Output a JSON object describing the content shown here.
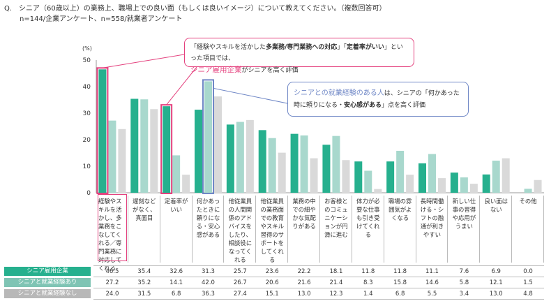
{
  "question": "Q.　シニア（60歳以上）の業務上、職場上での良い面（もしくは良いイメージ）について教えてください。（複数回答可）",
  "sample": "n=144/企業アンケート、n=558/就業者アンケート",
  "annotation1": {
    "line1_a": "「経験やスキルを活かした",
    "line1_b": "多業務/専門業務への対応",
    "line1_c": "」「",
    "line1_d": "定着率がいい",
    "line1_e": "」といった項目では、",
    "line2_a": "シニア雇用企業",
    "line2_b": "がシニアを高く評価"
  },
  "annotation2": {
    "line1_a": "シニアとの就業経験のある人",
    "line1_b": "は、シニアの「何かあった",
    "line2_a": "時に頼りになる・",
    "line2_b": "安心感がある",
    "line2_c": "」点を高く評価"
  },
  "chart_data": {
    "type": "bar",
    "ylabel": "(%)",
    "ylim": [
      0,
      50
    ],
    "yticks": [
      "0",
      "10",
      "20",
      "30",
      "40",
      "50"
    ],
    "colors": [
      "#26b08e",
      "#a8d8cd",
      "#d9d9d9"
    ],
    "categories": [
      "経験やスキルを活かし、多業務をこなしてくれる／専門業務に対応してくれる",
      "遅刻などがなく、真面目",
      "定着率がいい",
      "何かあったときに頼りになる・安心感がある",
      "他従業員の人間関係のアドバイスをしたり、相談役になってくれる",
      "他従業員の業務面での教育やスキル習得のサポートをしてくれる",
      "業務の中での細やかな気配りがある",
      "お客様とのコミュニケーションが円滑に進む",
      "体力が必要な仕事も引き受けてくれる",
      "職場の雰囲気がよくなる",
      "長時間働ける・シフトの融通が利きやすい",
      "新しい仕事の習得や応用がうまい",
      "良い面はない",
      "その他"
    ],
    "series": [
      {
        "name": "シニア雇用企業",
        "values": [
          46.5,
          35.4,
          32.6,
          31.3,
          25.7,
          23.6,
          22.2,
          18.1,
          11.8,
          11.8,
          11.1,
          7.6,
          6.9,
          0.0
        ],
        "labels": [
          "46.5",
          "35.4",
          "32.6",
          "31.3",
          "25.7",
          "23.6",
          "22.2",
          "18.1",
          "11.8",
          "11.8",
          "11.1",
          "7.6",
          "6.9",
          "0.0"
        ]
      },
      {
        "name": "シニアと就業経験あり",
        "values": [
          27.2,
          35.2,
          14.1,
          42.0,
          26.7,
          20.6,
          21.6,
          21.4,
          8.3,
          15.8,
          14.6,
          5.8,
          12.1,
          1.5
        ],
        "labels": [
          "27.2",
          "35.2",
          "14.1",
          "42.0",
          "26.7",
          "20.6",
          "21.6",
          "21.4",
          "8.3",
          "15.8",
          "14.6",
          "5.8",
          "12.1",
          "1.5"
        ]
      },
      {
        "name": "シニアと就業経験なし",
        "values": [
          24.0,
          31.5,
          6.8,
          36.3,
          27.4,
          15.1,
          13.0,
          12.3,
          1.4,
          6.8,
          5.5,
          3.4,
          13.0,
          4.8
        ],
        "labels": [
          "24.0",
          "31.5",
          "6.8",
          "36.3",
          "27.4",
          "15.1",
          "13.0",
          "12.3",
          "1.4",
          "6.8",
          "5.5",
          "3.4",
          "13.0",
          "4.8"
        ]
      }
    ],
    "highlight": [
      {
        "category_index": 0,
        "series_index": 0,
        "color": "#e4417e"
      },
      {
        "category_index": 2,
        "series_index": 0,
        "color": "#e4417e"
      },
      {
        "category_index": 3,
        "series_index": 1,
        "color": "#6f87c6"
      }
    ]
  }
}
